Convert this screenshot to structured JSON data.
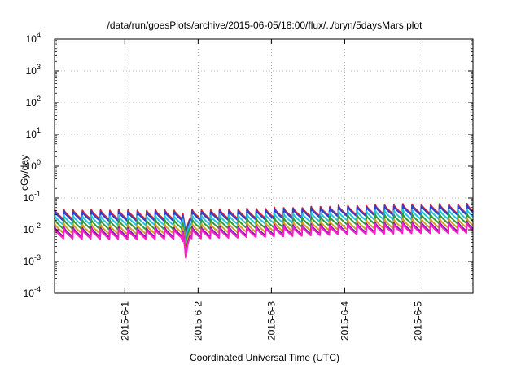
{
  "chart_data": {
    "type": "line",
    "title": "/data/run/goesPlots/archive/2015-06-05/18:00/flux/../bryn/5daysMars.plot",
    "xlabel": "Coordinated Universal Time (UTC)",
    "ylabel": "cGy/day",
    "yscale": "log",
    "ylim": [
      0.0001,
      10000
    ],
    "xlim": [
      "2015-05-31T01:00",
      "2015-06-05T18:00"
    ],
    "y_ticks": [
      {
        "base": "10",
        "exp": "-4"
      },
      {
        "base": "10",
        "exp": "-3"
      },
      {
        "base": "10",
        "exp": "-2"
      },
      {
        "base": "10",
        "exp": "-1"
      },
      {
        "base": "10",
        "exp": "0"
      },
      {
        "base": "10",
        "exp": "1"
      },
      {
        "base": "10",
        "exp": "2"
      },
      {
        "base": "10",
        "exp": "3"
      },
      {
        "base": "10",
        "exp": "4"
      }
    ],
    "x_ticks": [
      "2015-6-1",
      "2015-6-2",
      "2015-6-3",
      "2015-6-4",
      "2015-6-5"
    ],
    "x_tick_dates": [
      "2015-06-01T00:00",
      "2015-06-02T00:00",
      "2015-06-03T00:00",
      "2015-06-04T00:00",
      "2015-06-05T00:00"
    ],
    "grid": true,
    "pattern": "sawtooth (approx. 3-hour period)",
    "dip": {
      "date": "2015-06-01T20:00",
      "depth_factor": 0.12
    },
    "series": [
      {
        "color": "#e8231f",
        "trend": [
          [
            0,
            0.03
          ],
          [
            1,
            0.029
          ],
          [
            2,
            0.03
          ],
          [
            3,
            0.033
          ],
          [
            4,
            0.04
          ],
          [
            5,
            0.045
          ],
          [
            5.7,
            0.045
          ]
        ]
      },
      {
        "color": "#2a3fd6",
        "trend": [
          [
            0,
            0.027
          ],
          [
            1,
            0.026
          ],
          [
            2,
            0.027
          ],
          [
            3,
            0.03
          ],
          [
            4,
            0.037
          ],
          [
            5,
            0.041
          ],
          [
            5.7,
            0.041
          ]
        ]
      },
      {
        "color": "#26c4de",
        "trend": [
          [
            0,
            0.02
          ],
          [
            1,
            0.019
          ],
          [
            2,
            0.02
          ],
          [
            3,
            0.022
          ],
          [
            4,
            0.027
          ],
          [
            5,
            0.03
          ],
          [
            5.7,
            0.03
          ]
        ]
      },
      {
        "color": "#2e9a3c",
        "trend": [
          [
            0,
            0.015
          ],
          [
            1,
            0.014
          ],
          [
            2,
            0.015
          ],
          [
            3,
            0.016
          ],
          [
            4,
            0.02
          ],
          [
            5,
            0.022
          ],
          [
            5.7,
            0.022
          ]
        ]
      },
      {
        "color": "#d4a020",
        "trend": [
          [
            0,
            0.011
          ],
          [
            1,
            0.01
          ],
          [
            2,
            0.011
          ],
          [
            3,
            0.012
          ],
          [
            4,
            0.014
          ],
          [
            5,
            0.016
          ],
          [
            5.7,
            0.016
          ]
        ]
      },
      {
        "color": "#7a1fb3",
        "trend": [
          [
            0,
            0.0085
          ],
          [
            1,
            0.008
          ],
          [
            2,
            0.0085
          ],
          [
            3,
            0.0095
          ],
          [
            4,
            0.011
          ],
          [
            5,
            0.0125
          ],
          [
            5.7,
            0.0125
          ]
        ]
      },
      {
        "color": "#ff1ec8",
        "trend": [
          [
            0,
            0.0075
          ],
          [
            1,
            0.007
          ],
          [
            2,
            0.0075
          ],
          [
            3,
            0.0085
          ],
          [
            4,
            0.01
          ],
          [
            5,
            0.011
          ],
          [
            5.7,
            0.011
          ]
        ]
      }
    ]
  }
}
